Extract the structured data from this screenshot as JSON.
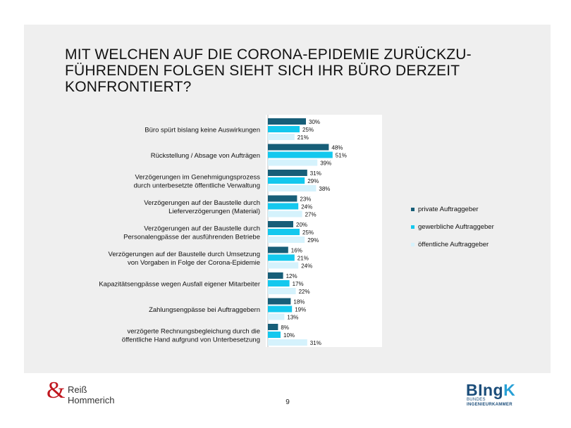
{
  "slide": {
    "title_lines": [
      "MIT WELCHEN AUF DIE CORONA-EPIDEMIE ZURÜCKZU-",
      "FÜHRENDEN FOLGEN SIEHT SICH IHR BÜRO DERZEIT",
      "KONFRONTIERT?"
    ],
    "page_number": "9"
  },
  "footer": {
    "left_brand_symbol": "&",
    "left_brand_line1": "Reiß",
    "left_brand_line2": "Hommerich",
    "right_logo_main": "BIng",
    "right_logo_accent": "K",
    "right_logo_sub1": "BUNDES",
    "right_logo_sub2": "INGENIEURKAMMER"
  },
  "chart_data": {
    "type": "bar",
    "orientation": "horizontal",
    "categories": [
      [
        "Büro spürt bislang keine Auswirkungen"
      ],
      [
        "Rückstellung / Absage von Aufträgen"
      ],
      [
        "Verzögerungen im Genehmigungsprozess",
        "durch unterbesetzte öffentliche Verwaltung"
      ],
      [
        "Verzögerungen auf der Baustelle durch",
        "Lieferverzögerungen (Material)"
      ],
      [
        "Verzögerungen auf der Baustelle durch",
        "Personalengpässe der ausführenden Betriebe"
      ],
      [
        "Verzögerungen auf der Baustelle durch Umsetzung",
        "von Vorgaben in Folge der Corona-Epidemie"
      ],
      [
        "Kapazitätsengpässe wegen Ausfall eigener Mitarbeiter"
      ],
      [
        "Zahlungsengpässe bei Auftraggebern"
      ],
      [
        "verzögerte Rechnungsbegleichung durch die",
        "öffentliche Hand aufgrund von Unterbesetzung"
      ]
    ],
    "series": [
      {
        "name": "private Auftraggeber",
        "color": "#175e78",
        "values": [
          30,
          48,
          31,
          23,
          20,
          16,
          12,
          18,
          8
        ]
      },
      {
        "name": "gewerbliche Auftraggeber",
        "color": "#14c8ee",
        "values": [
          25,
          51,
          29,
          24,
          25,
          21,
          17,
          19,
          10
        ]
      },
      {
        "name": "öffentliche Auftraggeber",
        "color": "#d5f2fc",
        "values": [
          21,
          39,
          38,
          27,
          29,
          24,
          22,
          13,
          31
        ]
      }
    ],
    "value_suffix": "%",
    "legend_position": "right",
    "grid": false,
    "xlim": [
      0,
      100
    ],
    "colors": {
      "plot_background": "#ffffff",
      "slide_background": "#efefef"
    }
  }
}
